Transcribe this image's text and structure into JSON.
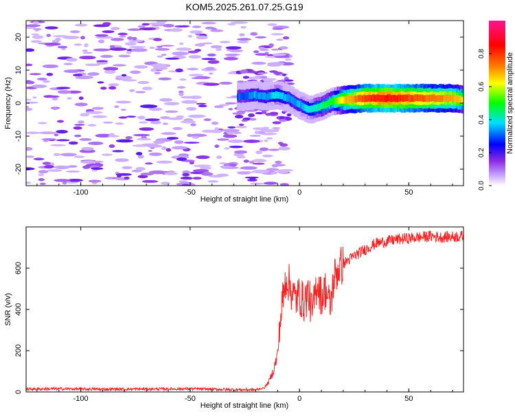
{
  "page": {
    "title": "KOM5.2025.261.07.25.G19"
  },
  "chart_data": [
    {
      "type": "heatmap",
      "title": "KOM5.2025.261.07.25.G19",
      "xlabel": "Height of straight line (km)",
      "ylabel": "Frequency (Hz)",
      "xlim": [
        -125,
        75
      ],
      "ylim": [
        -25,
        25
      ],
      "xticks": [
        -100,
        -50,
        0,
        50
      ],
      "yticks": [
        -20,
        -10,
        0,
        10,
        20
      ],
      "colorbar": {
        "label": "Normalized spectral amplitude",
        "range": [
          0,
          1
        ],
        "ticks": [
          0.0,
          0.2,
          0.4,
          0.6,
          0.8
        ],
        "stops": [
          "#ffffff",
          "#c9a8ff",
          "#8a2be2",
          "#0000ff",
          "#00e0ff",
          "#00ff00",
          "#ffff00",
          "#ff8000",
          "#ff0000",
          "#ff1493"
        ]
      },
      "ridge": {
        "x": [
          -28,
          -20,
          -15,
          -10,
          -5,
          0,
          5,
          10,
          15,
          20,
          30,
          40,
          50,
          60,
          70,
          75
        ],
        "freq": [
          2.0,
          2.5,
          2.0,
          2.5,
          1.5,
          -0.5,
          -2.0,
          -1.0,
          0.5,
          1.0,
          1.5,
          1.5,
          1.5,
          1.5,
          1.5,
          1.0
        ],
        "amplitude": [
          0.25,
          0.3,
          0.3,
          0.35,
          0.3,
          0.3,
          0.35,
          0.4,
          0.45,
          0.6,
          0.75,
          0.8,
          0.75,
          0.7,
          0.65,
          0.6
        ]
      }
    },
    {
      "type": "line",
      "title": "",
      "xlabel": "Height of straight line (km)",
      "ylabel": "SNR (v/v)",
      "xlim": [
        -125,
        75
      ],
      "ylim": [
        0,
        800
      ],
      "xticks": [
        -100,
        -50,
        0,
        50
      ],
      "yticks": [
        0,
        200,
        400,
        600
      ],
      "color": "#ff2020",
      "series": [
        {
          "name": "SNR",
          "x": [
            -125,
            -110,
            -90,
            -70,
            -50,
            -35,
            -20,
            -16,
            -14,
            -12,
            -10,
            -9,
            -8,
            -6,
            -4,
            -2,
            0,
            2,
            4,
            6,
            8,
            10,
            12,
            14,
            16,
            18,
            20,
            25,
            30,
            35,
            40,
            45,
            50,
            55,
            60,
            65,
            70,
            75
          ],
          "y": [
            14,
            15,
            13,
            14,
            15,
            12,
            10,
            20,
            50,
            100,
            180,
            320,
            420,
            560,
            500,
            450,
            470,
            430,
            480,
            380,
            540,
            460,
            500,
            410,
            560,
            600,
            620,
            660,
            690,
            720,
            730,
            740,
            745,
            750,
            755,
            750,
            752,
            755
          ]
        }
      ]
    }
  ]
}
